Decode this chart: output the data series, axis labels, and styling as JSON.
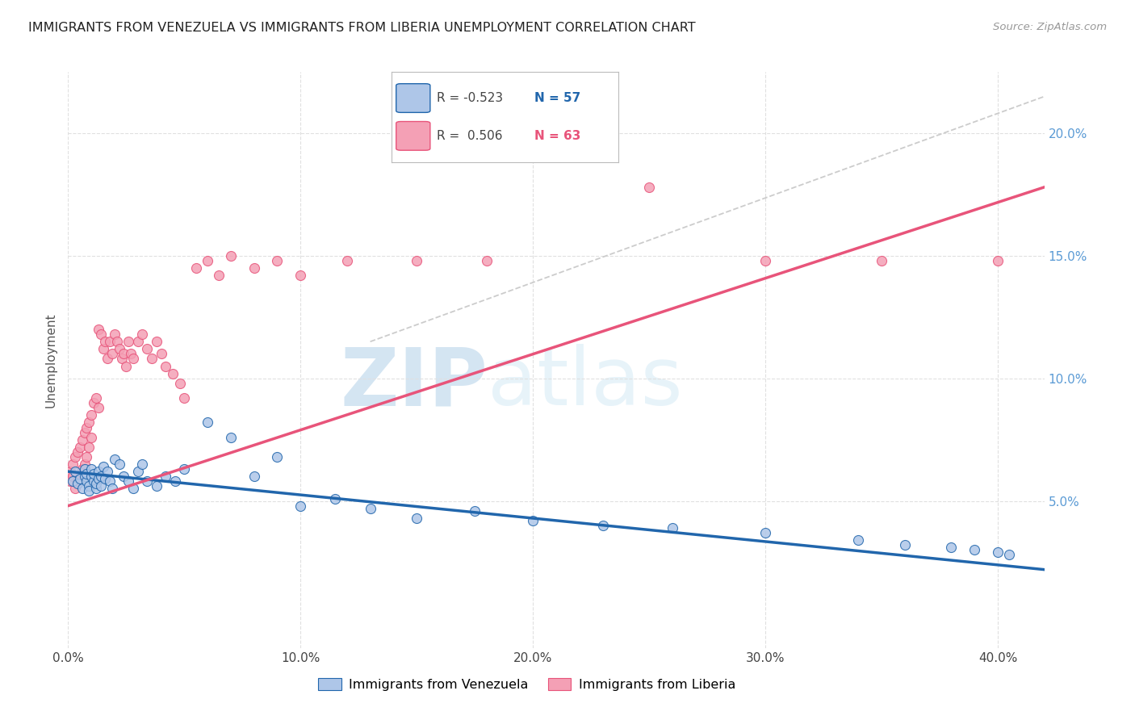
{
  "title": "IMMIGRANTS FROM VENEZUELA VS IMMIGRANTS FROM LIBERIA UNEMPLOYMENT CORRELATION CHART",
  "source": "Source: ZipAtlas.com",
  "ylabel": "Unemployment",
  "xlim": [
    0.0,
    0.42
  ],
  "ylim": [
    -0.01,
    0.225
  ],
  "x_ticks": [
    0.0,
    0.1,
    0.2,
    0.3,
    0.4
  ],
  "x_tick_labels": [
    "0.0%",
    "10.0%",
    "20.0%",
    "30.0%",
    "40.0%"
  ],
  "y_ticks_right": [
    0.05,
    0.1,
    0.15,
    0.2
  ],
  "y_tick_labels_right": [
    "5.0%",
    "10.0%",
    "15.0%",
    "20.0%"
  ],
  "venezuela_color": "#aec6e8",
  "liberia_color": "#f4a0b5",
  "venezuela_line_color": "#2166ac",
  "liberia_line_color": "#e8547a",
  "watermark_zip": "ZIP",
  "watermark_atlas": "atlas",
  "legend_r_venezuela": "R = -0.523",
  "legend_n_venezuela": "N = 57",
  "legend_r_liberia": "R =  0.506",
  "legend_n_liberia": "N = 63",
  "venezuela_x": [
    0.002,
    0.003,
    0.004,
    0.005,
    0.006,
    0.007,
    0.007,
    0.008,
    0.008,
    0.009,
    0.009,
    0.01,
    0.01,
    0.011,
    0.011,
    0.012,
    0.012,
    0.013,
    0.013,
    0.014,
    0.014,
    0.015,
    0.016,
    0.017,
    0.018,
    0.019,
    0.02,
    0.022,
    0.024,
    0.026,
    0.028,
    0.03,
    0.032,
    0.034,
    0.038,
    0.042,
    0.046,
    0.05,
    0.06,
    0.07,
    0.08,
    0.09,
    0.1,
    0.115,
    0.13,
    0.15,
    0.175,
    0.2,
    0.23,
    0.26,
    0.3,
    0.34,
    0.36,
    0.38,
    0.39,
    0.4,
    0.405
  ],
  "venezuela_y": [
    0.058,
    0.062,
    0.057,
    0.059,
    0.055,
    0.063,
    0.06,
    0.058,
    0.061,
    0.056,
    0.054,
    0.06,
    0.063,
    0.058,
    0.061,
    0.055,
    0.057,
    0.059,
    0.062,
    0.056,
    0.06,
    0.064,
    0.059,
    0.062,
    0.058,
    0.055,
    0.067,
    0.065,
    0.06,
    0.058,
    0.055,
    0.062,
    0.065,
    0.058,
    0.056,
    0.06,
    0.058,
    0.063,
    0.082,
    0.076,
    0.06,
    0.068,
    0.048,
    0.051,
    0.047,
    0.043,
    0.046,
    0.042,
    0.04,
    0.039,
    0.037,
    0.034,
    0.032,
    0.031,
    0.03,
    0.029,
    0.028
  ],
  "liberia_x": [
    0.001,
    0.001,
    0.002,
    0.002,
    0.003,
    0.003,
    0.004,
    0.004,
    0.005,
    0.005,
    0.006,
    0.006,
    0.007,
    0.007,
    0.008,
    0.008,
    0.009,
    0.009,
    0.01,
    0.01,
    0.011,
    0.012,
    0.013,
    0.013,
    0.014,
    0.015,
    0.016,
    0.017,
    0.018,
    0.019,
    0.02,
    0.021,
    0.022,
    0.023,
    0.024,
    0.025,
    0.026,
    0.027,
    0.028,
    0.03,
    0.032,
    0.034,
    0.036,
    0.038,
    0.04,
    0.042,
    0.045,
    0.048,
    0.05,
    0.055,
    0.06,
    0.065,
    0.07,
    0.08,
    0.09,
    0.1,
    0.12,
    0.15,
    0.18,
    0.25,
    0.3,
    0.35,
    0.4
  ],
  "liberia_y": [
    0.058,
    0.062,
    0.065,
    0.06,
    0.068,
    0.055,
    0.07,
    0.058,
    0.072,
    0.06,
    0.075,
    0.063,
    0.078,
    0.065,
    0.08,
    0.068,
    0.082,
    0.072,
    0.085,
    0.076,
    0.09,
    0.092,
    0.088,
    0.12,
    0.118,
    0.112,
    0.115,
    0.108,
    0.115,
    0.11,
    0.118,
    0.115,
    0.112,
    0.108,
    0.11,
    0.105,
    0.115,
    0.11,
    0.108,
    0.115,
    0.118,
    0.112,
    0.108,
    0.115,
    0.11,
    0.105,
    0.102,
    0.098,
    0.092,
    0.145,
    0.148,
    0.142,
    0.15,
    0.145,
    0.148,
    0.142,
    0.148,
    0.148,
    0.148,
    0.178,
    0.148,
    0.148,
    0.148
  ],
  "background_color": "#ffffff",
  "grid_color": "#e0e0e0",
  "trend_line_ven_x0": 0.0,
  "trend_line_ven_y0": 0.062,
  "trend_line_ven_x1": 0.42,
  "trend_line_ven_y1": 0.022,
  "trend_line_lib_x0": 0.0,
  "trend_line_lib_y0": 0.048,
  "trend_line_lib_x1": 0.42,
  "trend_line_lib_y1": 0.178,
  "dash_line_x0": 0.13,
  "dash_line_y0": 0.115,
  "dash_line_x1": 0.42,
  "dash_line_y1": 0.215
}
